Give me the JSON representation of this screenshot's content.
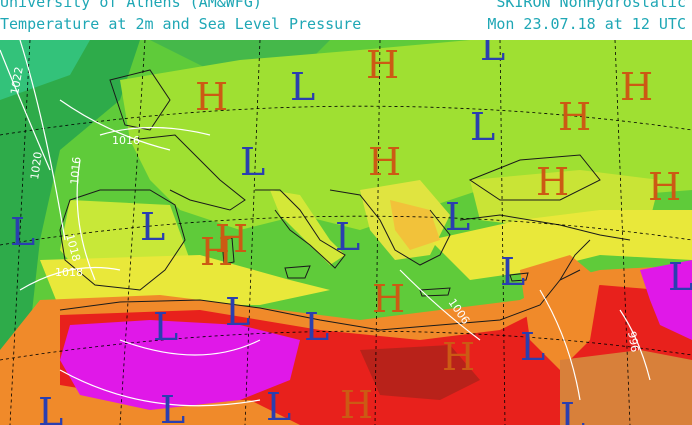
{
  "header": {
    "line1_left": "University of Athens (AM&WFG)",
    "line1_right": "SKIRON NonHydrostatic",
    "line2_left": "Temperature at 2m and Sea Level Pressure",
    "line2_right": "Mon 23.07.18 at 12 UTC"
  },
  "map": {
    "pressure_labels": [
      {
        "text": "1022"
      },
      {
        "text": "1020"
      },
      {
        "text": "1016"
      },
      {
        "text": "1016"
      },
      {
        "text": "1018"
      },
      {
        "text": "1018"
      },
      {
        "text": "1006"
      },
      {
        "text": "996"
      }
    ],
    "systems": [
      {
        "type": "H",
        "color": "#cc5a14"
      },
      {
        "type": "L",
        "color": "#2a3fb0"
      }
    ],
    "colors": {
      "sea_cool": "#2eab4a",
      "sea_mid": "#5fcb3a",
      "land_mild": "#9fe032",
      "land_warm": "#e9e83a",
      "hot_orange": "#f08a2a",
      "hot_red": "#e8211c",
      "extreme_magenta": "#e018e8",
      "contour": "#ffffff",
      "high_marker": "#cc5a14",
      "low_marker": "#2a3fb0"
    }
  }
}
